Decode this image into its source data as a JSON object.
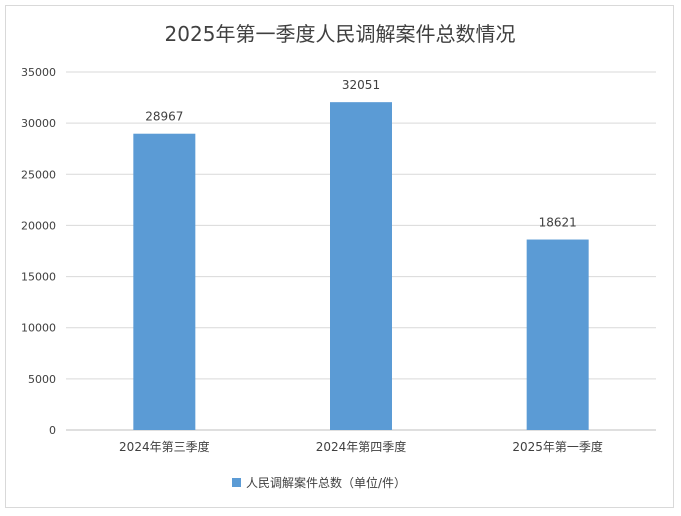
{
  "chart_data": {
    "type": "bar",
    "title": "2025年第一季度人民调解案件总数情况",
    "categories": [
      "2024年第三季度",
      "2024年第四季度",
      "2025年第一季度"
    ],
    "series": [
      {
        "name": "人民调解案件总数（单位/件）",
        "values": [
          28967,
          32051,
          18621
        ],
        "color": "#5b9bd5"
      }
    ],
    "ylim": [
      0,
      35000
    ],
    "yticks": [
      0,
      5000,
      10000,
      15000,
      20000,
      25000,
      30000,
      35000
    ],
    "grid": true,
    "legend": "bottom",
    "data_labels": true
  }
}
